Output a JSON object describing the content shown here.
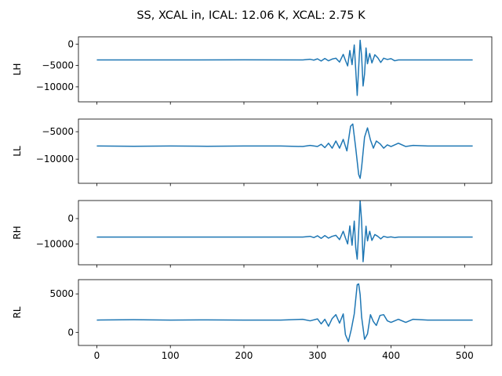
{
  "chart_data": {
    "type": "line",
    "title": "SS, XCAL in, ICAL: 12.06 K, XCAL: 2.75 K",
    "line_color": "#1f77b4",
    "shared_x": {
      "range": [
        -25,
        537
      ],
      "ticks": [
        0,
        100,
        200,
        300,
        400,
        500
      ],
      "tick_labels": [
        "0",
        "100",
        "200",
        "300",
        "400",
        "500"
      ]
    },
    "panels": [
      {
        "ylabel": "LH",
        "ylim": [
          -13500,
          1700
        ],
        "yticks": [
          0,
          -5000,
          -10000
        ],
        "ytick_labels": [
          "0",
          "−5000",
          "−10000"
        ],
        "series": [
          {
            "x": [
              0,
              100,
              200,
              280,
              290,
              295,
              300,
              305,
              310,
              315,
              320,
              325,
              330,
              335,
              338,
              341,
              344,
              347,
              350,
              352,
              354,
              356,
              358,
              360,
              362,
              364,
              366,
              368,
              371,
              374,
              378,
              382,
              386,
              390,
              395,
              400,
              405,
              410,
              420,
              440,
              480,
              511
            ],
            "values": [
              -3700,
              -3700,
              -3680,
              -3700,
              -3550,
              -3750,
              -3450,
              -3950,
              -3350,
              -3900,
              -3500,
              -3300,
              -4200,
              -2400,
              -3800,
              -5100,
              -1500,
              -4800,
              -200,
              -6000,
              -12000,
              -5500,
              900,
              -2800,
              -9800,
              -7000,
              -900,
              -4600,
              -2200,
              -4400,
              -2500,
              -3200,
              -4300,
              -3300,
              -3600,
              -3400,
              -3900,
              -3700,
              -3700,
              -3700,
              -3700,
              -3700
            ]
          }
        ]
      },
      {
        "ylabel": "LL",
        "ylim": [
          -14400,
          -2700
        ],
        "yticks": [
          -5000,
          -10000
        ],
        "ytick_labels": [
          "−5000",
          "−10000"
        ],
        "series": [
          {
            "x": [
              0,
              50,
              100,
              150,
              200,
              250,
              280,
              290,
              300,
              305,
              310,
              315,
              320,
              325,
              330,
              335,
              340,
              345,
              348,
              352,
              356,
              358,
              360,
              364,
              368,
              372,
              376,
              380,
              385,
              390,
              395,
              400,
              410,
              420,
              430,
              450,
              480,
              511
            ],
            "values": [
              -7600,
              -7650,
              -7600,
              -7650,
              -7600,
              -7600,
              -7700,
              -7500,
              -7700,
              -7300,
              -7900,
              -7100,
              -8000,
              -6700,
              -8000,
              -6400,
              -8500,
              -4000,
              -3600,
              -8000,
              -12800,
              -13500,
              -11500,
              -6000,
              -4300,
              -6500,
              -8000,
              -6700,
              -7200,
              -8000,
              -7400,
              -7700,
              -7100,
              -7700,
              -7500,
              -7600,
              -7600,
              -7600
            ]
          }
        ]
      },
      {
        "ylabel": "RH",
        "ylim": [
          -18200,
          7100
        ],
        "yticks": [
          0,
          -10000
        ],
        "ytick_labels": [
          "0",
          "−10000"
        ],
        "series": [
          {
            "x": [
              0,
              100,
              200,
              280,
              290,
              295,
              300,
              305,
              310,
              315,
              320,
              325,
              330,
              335,
              338,
              341,
              344,
              347,
              350,
              352,
              354,
              356,
              358,
              360,
              362,
              364,
              366,
              368,
              371,
              374,
              378,
              382,
              386,
              390,
              395,
              400,
              405,
              410,
              420,
              440,
              480,
              511
            ],
            "values": [
              -7300,
              -7300,
              -7280,
              -7300,
              -7000,
              -7500,
              -6800,
              -7800,
              -6700,
              -7700,
              -7000,
              -6600,
              -8300,
              -5000,
              -7600,
              -10000,
              -2900,
              -10500,
              -1000,
              -11500,
              -16000,
              -5000,
              7000,
              -1000,
              -17000,
              -10000,
              -3000,
              -8800,
              -5000,
              -8600,
              -6300,
              -7000,
              -8000,
              -7000,
              -7400,
              -7200,
              -7500,
              -7300,
              -7300,
              -7300,
              -7300,
              -7300
            ]
          }
        ]
      },
      {
        "ylabel": "RL",
        "ylim": [
          -1700,
          6850
        ],
        "yticks": [
          5000,
          0
        ],
        "ytick_labels": [
          "5000",
          "0"
        ],
        "series": [
          {
            "x": [
              0,
              50,
              100,
              150,
              200,
              250,
              280,
              290,
              300,
              305,
              310,
              315,
              320,
              325,
              330,
              335,
              338,
              342,
              346,
              350,
              354,
              356,
              358,
              360,
              364,
              368,
              372,
              376,
              380,
              385,
              390,
              395,
              400,
              410,
              420,
              430,
              450,
              480,
              511
            ],
            "values": [
              1600,
              1650,
              1600,
              1620,
              1600,
              1600,
              1700,
              1500,
              1750,
              1100,
              1700,
              800,
              1800,
              2300,
              1200,
              2400,
              -300,
              -1200,
              400,
              2400,
              6200,
              6300,
              4900,
              2000,
              -900,
              -200,
              2300,
              1400,
              900,
              2200,
              2300,
              1500,
              1300,
              1700,
              1300,
              1700,
              1600,
              1600,
              1600
            ]
          }
        ]
      }
    ]
  }
}
